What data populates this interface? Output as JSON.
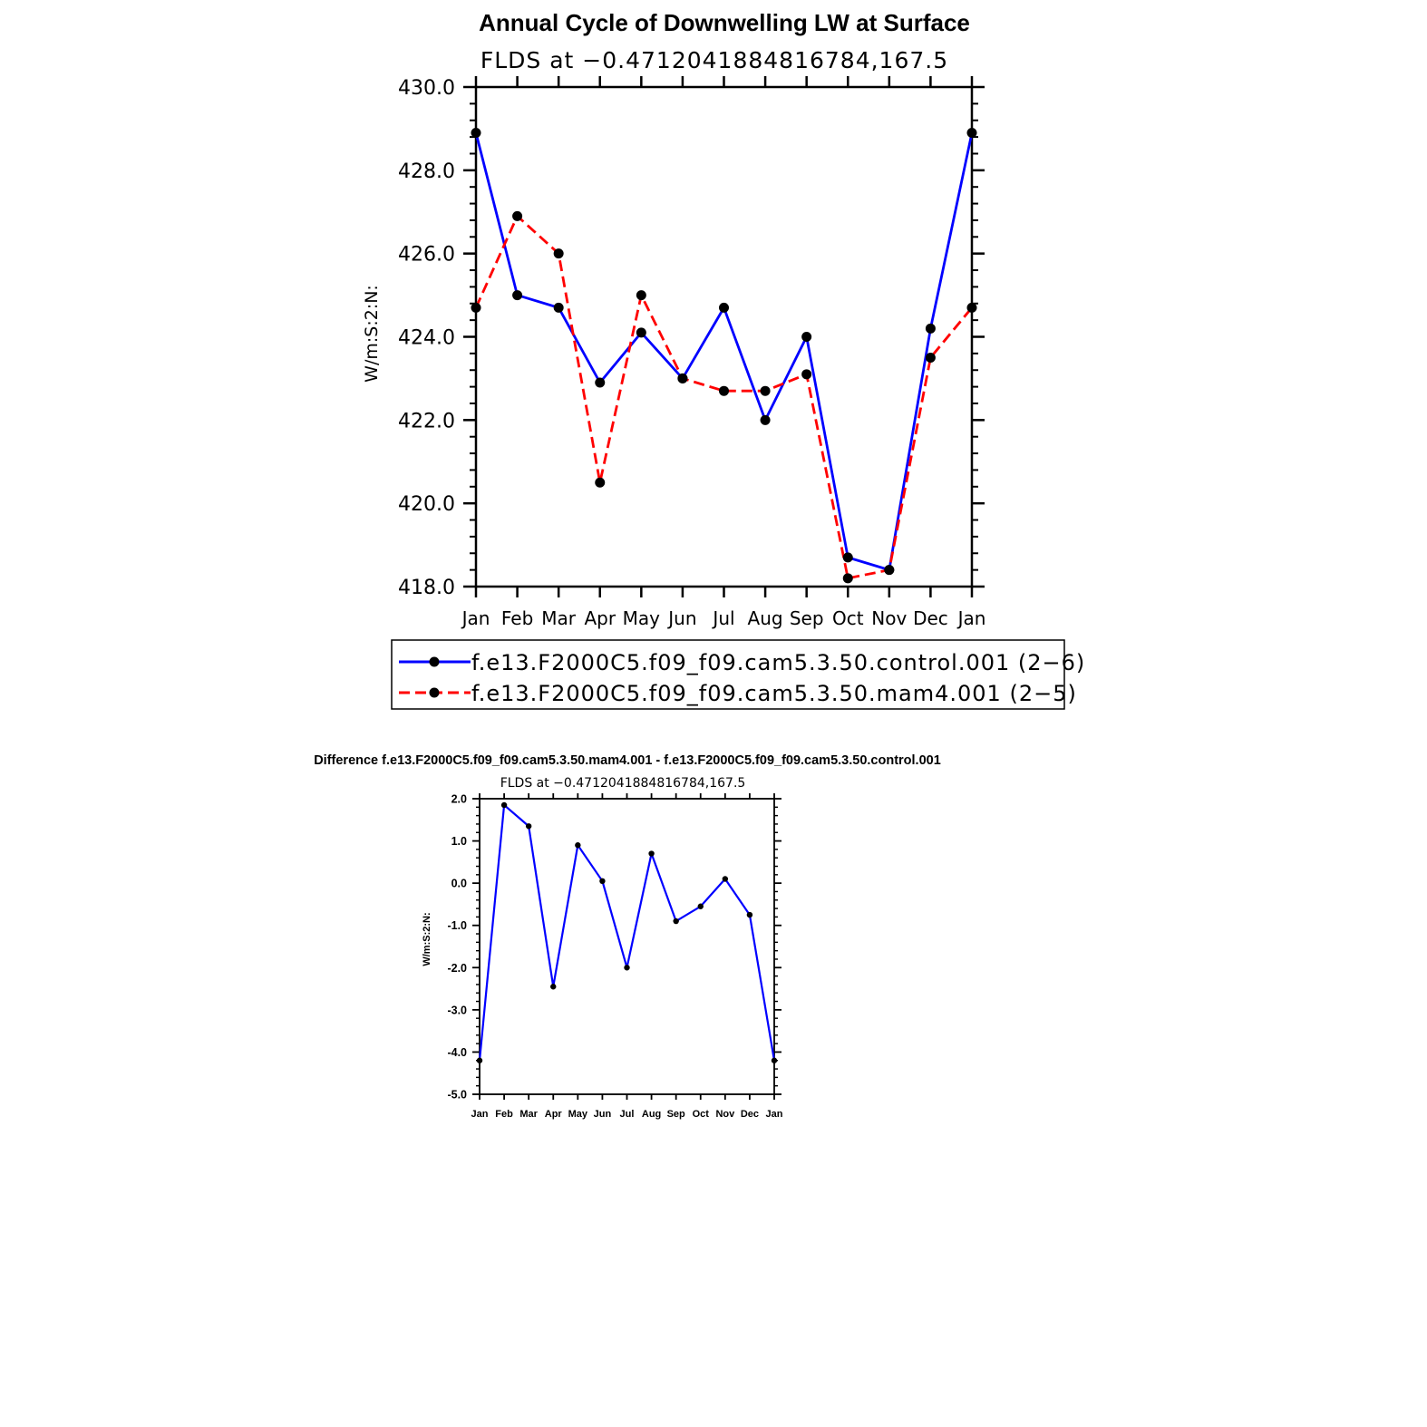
{
  "chart_data": [
    {
      "type": "line",
      "title": "Annual Cycle of Downwelling LW at Surface",
      "subtitle": "FLDS at −0.4712041884816784,167.5",
      "xlabel": "",
      "ylabel": "W/m:S:2:N:",
      "categories": [
        "Jan",
        "Feb",
        "Mar",
        "Apr",
        "May",
        "Jun",
        "Jul",
        "Aug",
        "Sep",
        "Oct",
        "Nov",
        "Dec",
        "Jan"
      ],
      "ylim": [
        418.0,
        430.0
      ],
      "yticks": [
        "418.0",
        "420.0",
        "422.0",
        "424.0",
        "426.0",
        "428.0",
        "430.0"
      ],
      "series": [
        {
          "name": "f.e13.F2000C5.f09_f09.cam5.3.50.control.001 (2−6)",
          "color": "#0000ff",
          "style": "solid",
          "values": [
            428.9,
            425.0,
            424.7,
            422.9,
            424.1,
            423.0,
            424.7,
            422.0,
            424.0,
            418.7,
            418.4,
            424.2,
            428.9
          ]
        },
        {
          "name": "f.e13.F2000C5.f09_f09.cam5.3.50.mam4.001 (2−5)",
          "color": "#ff0000",
          "style": "dashed",
          "values": [
            424.7,
            426.9,
            426.0,
            420.5,
            425.0,
            423.0,
            422.7,
            422.7,
            423.1,
            418.2,
            418.4,
            423.5,
            424.7
          ]
        }
      ],
      "legend": "below",
      "grid": false
    },
    {
      "type": "line",
      "title": "Difference f.e13.F2000C5.f09_f09.cam5.3.50.mam4.001 - f.e13.F2000C5.f09_f09.cam5.3.50.control.001",
      "subtitle": "FLDS at −0.4712041884816784,167.5",
      "xlabel": "",
      "ylabel": "W/m:S:2:N:",
      "categories": [
        "Jan",
        "Feb",
        "Mar",
        "Apr",
        "May",
        "Jun",
        "Jul",
        "Aug",
        "Sep",
        "Oct",
        "Nov",
        "Dec",
        "Jan"
      ],
      "ylim": [
        -5.0,
        2.0
      ],
      "yticks": [
        "-5.0",
        "-4.0",
        "-3.0",
        "-2.0",
        "-1.0",
        "0.0",
        "1.0",
        "2.0"
      ],
      "series": [
        {
          "color": "#0000ff",
          "style": "solid",
          "values": [
            -4.2,
            1.85,
            1.35,
            -2.45,
            0.9,
            0.05,
            -2.0,
            0.7,
            -0.9,
            -0.55,
            0.1,
            -0.75,
            -4.2
          ]
        }
      ],
      "grid": false
    }
  ]
}
